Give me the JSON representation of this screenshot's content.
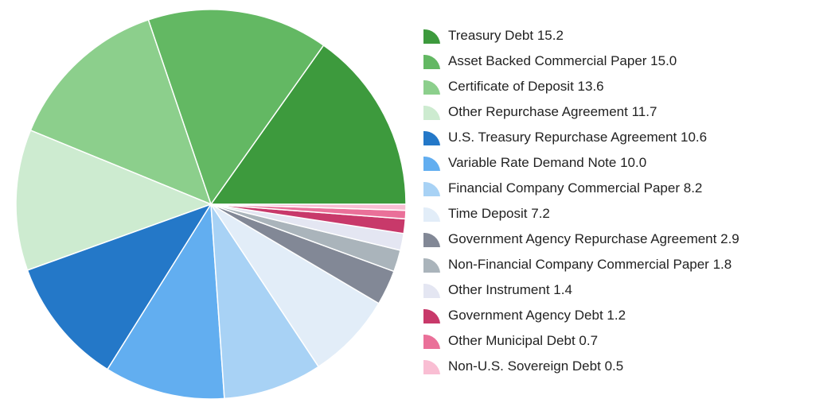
{
  "chart_data": {
    "type": "pie",
    "categories": [
      "Treasury Debt",
      "Asset Backed Commercial Paper",
      "Certificate of Deposit",
      "Other Repurchase Agreement",
      "U.S. Treasury Repurchase Agreement",
      "Variable Rate Demand Note",
      "Financial Company Commercial Paper",
      "Time Deposit",
      "Government Agency Repurchase Agreement",
      "Non-Financial Company Commercial Paper",
      "Other Instrument",
      "Government Agency Debt",
      "Other Municipal Debt",
      "Non-U.S. Sovereign Debt"
    ],
    "values": [
      15.2,
      15,
      13.6,
      11.7,
      10.6,
      10,
      8.2,
      7.2,
      2.9,
      1.8,
      1.4,
      1.2,
      0.7,
      0.5
    ],
    "value_labels": [
      "15.2",
      "15.0",
      "13.6",
      "11.7",
      "10.6",
      "10.0",
      "8.2",
      "7.2",
      "2.9",
      "1.8",
      "1.4",
      "1.2",
      "0.7",
      "0.5"
    ],
    "colors": [
      "#3d9a3d",
      "#63b863",
      "#8ccf8c",
      "#cdebd0",
      "#2478c8",
      "#62aef0",
      "#a8d2f5",
      "#e2edf8",
      "#828896",
      "#aab4bb",
      "#e4e6f2",
      "#c8396a",
      "#ea7099",
      "#f9bed3"
    ],
    "legend": "right"
  }
}
